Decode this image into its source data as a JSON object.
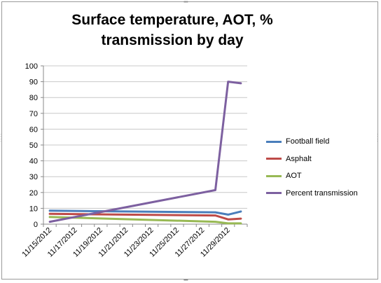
{
  "chart_data": {
    "type": "line",
    "title_line1": "Surface temperature, AOT, %",
    "title_line2": "transmission by day",
    "xlabel": "",
    "ylabel": "",
    "ylim": [
      0,
      100
    ],
    "yticks": [
      0,
      10,
      20,
      30,
      40,
      50,
      60,
      70,
      80,
      90,
      100
    ],
    "x": [
      "11/15/2012",
      "11/16/2012",
      "11/17/2012",
      "11/18/2012",
      "11/19/2012",
      "11/20/2012",
      "11/21/2012",
      "11/22/2012",
      "11/23/2012",
      "11/24/2012",
      "11/25/2012",
      "11/26/2012",
      "11/27/2012",
      "11/28/2012",
      "11/29/2012",
      "11/30/2012"
    ],
    "x_tick_labels": [
      "11/15/2012",
      "11/17/2012",
      "11/19/2012",
      "11/21/2012",
      "11/23/2012",
      "11/25/2012",
      "11/27/2012",
      "11/29/2012"
    ],
    "legend_position": "right",
    "grid": "horizontal",
    "series": [
      {
        "name": "Football field",
        "color": "#4a7ebb",
        "x": [
          "11/15/2012",
          "11/28/2012",
          "11/29/2012",
          "11/30/2012"
        ],
        "values": [
          8.5,
          7.5,
          6.0,
          8.0
        ]
      },
      {
        "name": "Asphalt",
        "color": "#be4b48",
        "x": [
          "11/15/2012",
          "11/28/2012",
          "11/29/2012",
          "11/30/2012"
        ],
        "values": [
          6.5,
          5.5,
          3.0,
          3.5
        ]
      },
      {
        "name": "AOT",
        "color": "#98b954",
        "x": [
          "11/15/2012",
          "11/28/2012",
          "11/29/2012",
          "11/30/2012"
        ],
        "values": [
          4.5,
          1.5,
          0.5,
          0.5
        ]
      },
      {
        "name": "Percent transmission",
        "color": "#7d60a0",
        "x": [
          "11/15/2012",
          "11/28/2012",
          "11/29/2012",
          "11/30/2012"
        ],
        "values": [
          1.5,
          21.5,
          90.0,
          89.0
        ]
      }
    ]
  }
}
